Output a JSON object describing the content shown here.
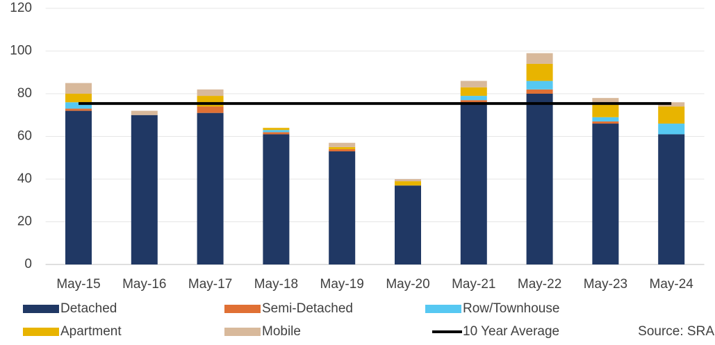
{
  "chart_data": {
    "type": "bar",
    "stacked": true,
    "categories": [
      "May-15",
      "May-16",
      "May-17",
      "May-18",
      "May-19",
      "May-20",
      "May-21",
      "May-22",
      "May-23",
      "May-24"
    ],
    "series": [
      {
        "name": "Detached",
        "color": "#203864",
        "values": [
          72,
          70,
          71,
          61,
          53,
          37,
          76,
          80,
          66,
          61
        ]
      },
      {
        "name": "Semi-Detached",
        "color": "#e07034",
        "values": [
          1,
          0,
          3,
          1,
          1,
          0,
          1,
          2,
          1,
          0
        ]
      },
      {
        "name": "Row/Townhouse",
        "color": "#56c8f2",
        "values": [
          3,
          0,
          0,
          1,
          0,
          0,
          2,
          4,
          2,
          5
        ]
      },
      {
        "name": "Apartment",
        "color": "#e8b400",
        "values": [
          4,
          0,
          5,
          1,
          1,
          2,
          4,
          8,
          6,
          8
        ]
      },
      {
        "name": "Mobile",
        "color": "#d8b99b",
        "values": [
          5,
          2,
          3,
          0,
          2,
          1,
          3,
          5,
          3,
          2
        ]
      },
      {
        "name": "10 Year Average",
        "color": "#000000",
        "type": "line",
        "values": [
          75.4,
          75.4,
          75.4,
          75.4,
          75.4,
          75.4,
          75.4,
          75.4,
          75.4,
          75.4
        ]
      }
    ],
    "ylim": [
      0,
      120
    ],
    "yticks": [
      0,
      20,
      40,
      60,
      80,
      100,
      120
    ],
    "grid": true,
    "legend": "bottom",
    "source": "Source: SRA"
  }
}
